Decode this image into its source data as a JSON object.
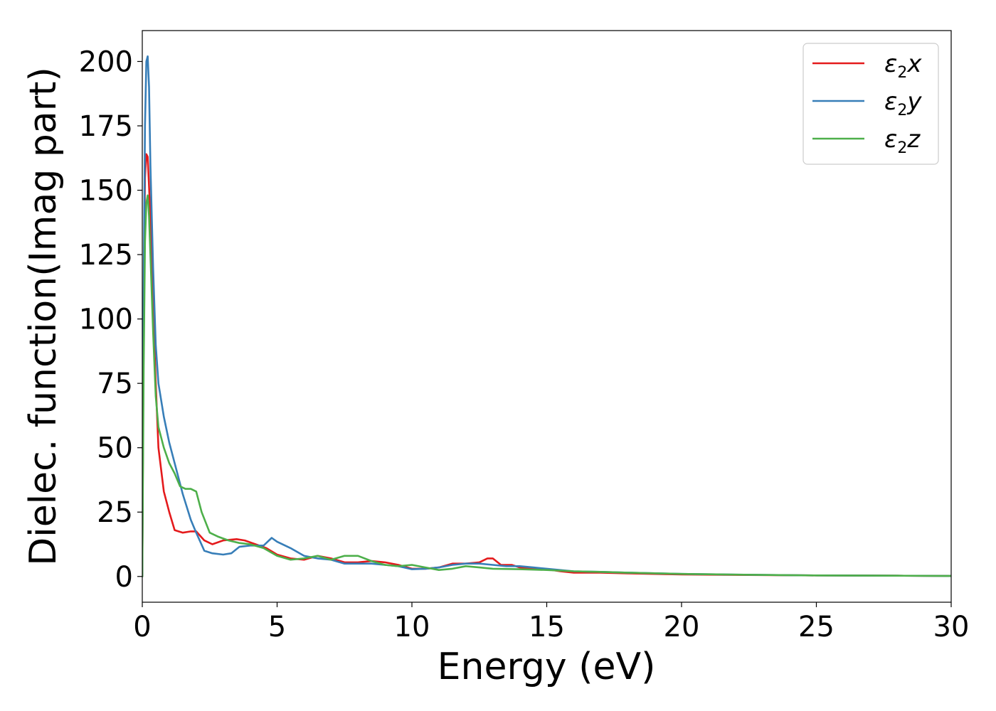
{
  "chart_data": {
    "type": "line",
    "xlabel": "Energy (eV)",
    "ylabel": "Dielec. function(Imag part)",
    "xlim": [
      0,
      30
    ],
    "ylim": [
      -10,
      212
    ],
    "xticks": [
      0,
      5,
      10,
      15,
      20,
      25,
      30
    ],
    "yticks": [
      0,
      25,
      50,
      75,
      100,
      125,
      150,
      175,
      200
    ],
    "grid": false,
    "legend_position": "top-right",
    "series": [
      {
        "name": "ε2x",
        "legend": {
          "base": "ε",
          "sub": "2",
          "var": "x"
        },
        "color": "#e41a1c",
        "x": [
          0,
          0.05,
          0.1,
          0.15,
          0.2,
          0.3,
          0.4,
          0.5,
          0.6,
          0.8,
          1.0,
          1.2,
          1.5,
          1.8,
          2.0,
          2.3,
          2.6,
          3.0,
          3.5,
          3.8,
          4.2,
          4.6,
          5.0,
          5.5,
          6.0,
          6.5,
          7.0,
          7.5,
          8.0,
          8.5,
          9.0,
          9.5,
          10.0,
          10.5,
          11.0,
          11.5,
          12.0,
          12.5,
          12.8,
          13.0,
          13.3,
          13.7,
          14.0,
          14.5,
          15.0,
          15.5,
          16.0,
          17.0,
          18.0,
          19.0,
          20.0,
          22.0,
          25.0,
          28.0,
          30.0
        ],
        "y": [
          0,
          100,
          155,
          164,
          163,
          140,
          105,
          75,
          50,
          33,
          25,
          18,
          17,
          17.5,
          17.5,
          14,
          12.5,
          14,
          14.5,
          14,
          12.5,
          11,
          8.5,
          7,
          6.5,
          8,
          7,
          5.5,
          5.5,
          6,
          5.5,
          4.5,
          3,
          3,
          3.5,
          5,
          5,
          5.5,
          7,
          7,
          4.5,
          4.5,
          3.5,
          3,
          2.8,
          2,
          1.5,
          1.5,
          1.2,
          1,
          0.8,
          0.6,
          0.4,
          0.3,
          0.2
        ]
      },
      {
        "name": "ε2y",
        "legend": {
          "base": "ε",
          "sub": "2",
          "var": "y"
        },
        "color": "#377eb8",
        "x": [
          0,
          0.05,
          0.1,
          0.15,
          0.2,
          0.25,
          0.3,
          0.4,
          0.5,
          0.6,
          0.8,
          1.0,
          1.2,
          1.5,
          1.8,
          2.0,
          2.3,
          2.6,
          3.0,
          3.3,
          3.6,
          4.0,
          4.5,
          4.8,
          5.0,
          5.5,
          6.0,
          6.5,
          7.0,
          7.5,
          8.0,
          8.5,
          9.0,
          9.5,
          10.0,
          10.5,
          11.0,
          11.5,
          12.0,
          12.5,
          13.0,
          13.5,
          14.0,
          14.5,
          15.0,
          16.0,
          17.0,
          18.0,
          20.0,
          22.0,
          25.0,
          28.0,
          30.0
        ],
        "y": [
          0,
          110,
          175,
          200,
          202,
          190,
          160,
          120,
          90,
          75,
          62,
          52,
          44,
          32,
          22,
          17,
          10,
          9,
          8.5,
          9,
          11.5,
          12,
          12,
          15,
          13.5,
          11,
          8,
          7,
          6.5,
          5,
          5,
          5,
          4.5,
          4,
          2.8,
          3,
          3.5,
          4.5,
          5,
          5,
          4.5,
          4,
          4,
          3.5,
          3,
          2,
          1.8,
          1.5,
          1,
          0.7,
          0.4,
          0.3,
          0.2
        ]
      },
      {
        "name": "ε2z",
        "legend": {
          "base": "ε",
          "sub": "2",
          "var": "z"
        },
        "color": "#4daf4a",
        "x": [
          0,
          0.05,
          0.1,
          0.15,
          0.2,
          0.25,
          0.3,
          0.4,
          0.5,
          0.6,
          0.8,
          1.0,
          1.2,
          1.4,
          1.6,
          1.8,
          2.0,
          2.2,
          2.5,
          2.8,
          3.2,
          3.6,
          4.0,
          4.5,
          5.0,
          5.5,
          6.0,
          6.5,
          7.0,
          7.5,
          8.0,
          8.5,
          9.0,
          9.5,
          10.0,
          10.5,
          11.0,
          11.5,
          12.0,
          12.5,
          13.0,
          14.0,
          15.0,
          16.0,
          17.0,
          18.0,
          20.0,
          22.0,
          25.0,
          28.0,
          30.0
        ],
        "y": [
          0,
          80,
          130,
          145,
          148,
          140,
          125,
          95,
          70,
          58,
          50,
          44,
          40,
          35,
          34,
          34,
          33,
          25,
          17,
          15.5,
          14,
          13,
          12.5,
          11,
          8,
          6.5,
          7,
          8,
          6.5,
          8,
          8,
          6,
          4.5,
          4,
          4.5,
          3.5,
          2.5,
          3,
          4,
          3.5,
          3,
          2.8,
          2.5,
          2,
          1.8,
          1.5,
          1,
          0.7,
          0.4,
          0.3,
          0.2
        ]
      }
    ]
  }
}
